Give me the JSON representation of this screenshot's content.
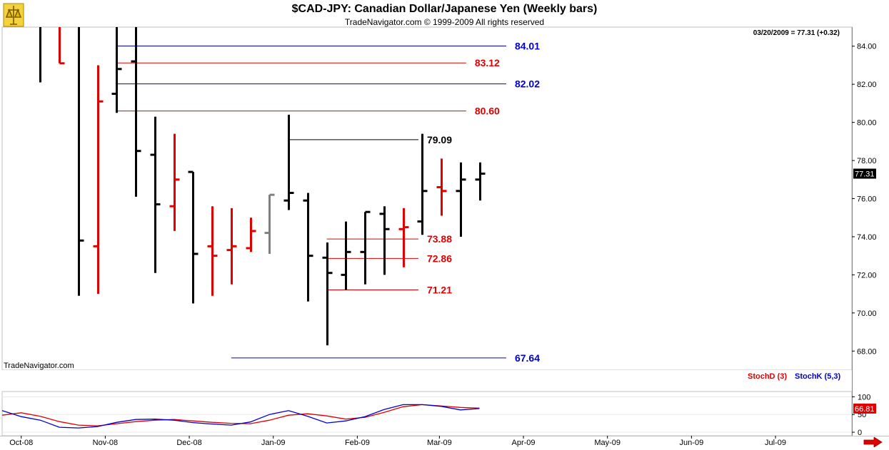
{
  "header": {
    "title": "$CAD-JPY:  Canadian Dollar/Japanese Yen  (Weekly bars)",
    "copyright": "TradeNavigator.com © 1999-2009 All rights reserved"
  },
  "price_panel": {
    "quote": "03/20/2009 = 77.31 (+0.32)",
    "last_price_tag": "77.31",
    "watermark": "TradeNavigator.com"
  },
  "stoch_panel": {
    "legend_d": "StochD (3)",
    "legend_k": "StochK (5,3)",
    "last_value_tag": "66.81"
  },
  "colors": {
    "up_bar": "#000000",
    "down_bar": "#e00000",
    "neutral_bar": "#808080",
    "blue_level": "#0000cc",
    "red_level": "#e00000",
    "black_level": "#000000",
    "stoch_d": "#e00000",
    "stoch_k": "#0000cc",
    "grid": "#e8e8e8"
  },
  "icons": [
    "logo-icon",
    "scroll-right-arrow-icon"
  ],
  "chart_data": [
    {
      "type": "ohlc",
      "title": "$CAD-JPY:  Canadian Dollar/Japanese Yen  (Weekly bars)",
      "ylim": [
        67,
        85
      ],
      "y_ticks": [
        68,
        70,
        72,
        74,
        76,
        78,
        80,
        82,
        84
      ],
      "y_tick_labels": [
        "68.00",
        "70.00",
        "72.00",
        "74.00",
        "76.00",
        "78.00",
        "80.00",
        "82.00",
        "84.00"
      ],
      "x_tick_labels": [
        "Oct-08",
        "Nov-08",
        "Dec-08",
        "Jan-09",
        "Feb-09",
        "Mar-09",
        "Apr-09",
        "May-09",
        "Jun-09",
        "Jul-09"
      ],
      "x_tick_weeks": [
        1,
        5.4,
        9.8,
        14.2,
        18.6,
        22.9,
        27.3,
        31.7,
        36.1,
        40.5
      ],
      "x_range_weeks": [
        0,
        44.5
      ],
      "grid": false,
      "bars": [
        {
          "week": 2,
          "open": 85,
          "high": 85,
          "low": 82.1,
          "close": 85,
          "color": "up"
        },
        {
          "week": 3,
          "open": 85,
          "high": 85,
          "low": 83.1,
          "close": 83.1,
          "color": "down"
        },
        {
          "week": 4,
          "open": 85,
          "high": 85,
          "low": 70.9,
          "close": 73.8,
          "color": "up"
        },
        {
          "week": 5,
          "open": 73.5,
          "high": 83.0,
          "low": 71.0,
          "close": 81.1,
          "color": "down"
        },
        {
          "week": 6,
          "open": 81.5,
          "high": 85,
          "low": 80.5,
          "close": 82.8,
          "color": "up"
        },
        {
          "week": 7,
          "open": 83.2,
          "high": 85,
          "low": 76.1,
          "close": 78.5,
          "color": "up"
        },
        {
          "week": 8,
          "open": 78.3,
          "high": 80.3,
          "low": 72.1,
          "close": 75.7,
          "color": "up"
        },
        {
          "week": 9,
          "open": 75.6,
          "high": 79.4,
          "low": 74.3,
          "close": 77.0,
          "color": "down"
        },
        {
          "week": 10,
          "open": 77.4,
          "high": 77.4,
          "low": 70.5,
          "close": 73.1,
          "color": "up"
        },
        {
          "week": 11,
          "open": 73.5,
          "high": 75.6,
          "low": 70.9,
          "close": 73.0,
          "color": "down"
        },
        {
          "week": 12,
          "open": 73.3,
          "high": 75.5,
          "low": 71.5,
          "close": 73.5,
          "color": "down"
        },
        {
          "week": 13,
          "open": 73.4,
          "high": 75.0,
          "low": 73.2,
          "close": 74.3,
          "color": "down"
        },
        {
          "week": 14,
          "open": 74.2,
          "high": 76.2,
          "low": 73.1,
          "close": 76.2,
          "color": "neutral"
        },
        {
          "week": 15,
          "open": 75.9,
          "high": 80.4,
          "low": 75.4,
          "close": 76.3,
          "color": "up"
        },
        {
          "week": 16,
          "open": 75.9,
          "high": 76.3,
          "low": 70.6,
          "close": 73.0,
          "color": "up"
        },
        {
          "week": 17,
          "open": 72.9,
          "high": 73.7,
          "low": 68.3,
          "close": 72.1,
          "color": "up"
        },
        {
          "week": 18,
          "open": 72.0,
          "high": 74.8,
          "low": 71.2,
          "close": 73.2,
          "color": "up"
        },
        {
          "week": 19,
          "open": 73.2,
          "high": 75.3,
          "low": 71.5,
          "close": 75.3,
          "color": "up"
        },
        {
          "week": 20,
          "open": 75.2,
          "high": 75.6,
          "low": 72.0,
          "close": 74.4,
          "color": "up"
        },
        {
          "week": 21,
          "open": 74.4,
          "high": 75.5,
          "low": 72.4,
          "close": 74.5,
          "color": "down"
        },
        {
          "week": 22,
          "open": 74.8,
          "high": 79.4,
          "low": 74.1,
          "close": 76.4,
          "color": "up"
        },
        {
          "week": 23,
          "open": 76.6,
          "high": 78.1,
          "low": 75.1,
          "close": 76.4,
          "color": "down"
        },
        {
          "week": 24,
          "open": 76.4,
          "high": 77.9,
          "low": 74.0,
          "close": 77.0,
          "color": "up"
        },
        {
          "week": 25,
          "open": 77.0,
          "high": 77.9,
          "low": 75.9,
          "close": 77.31,
          "color": "up"
        }
      ],
      "levels": [
        {
          "value": 84.01,
          "label": "84.01",
          "color": "blue",
          "from_week": 6,
          "to_week": 26.4
        },
        {
          "value": 83.12,
          "label": "83.12",
          "color": "red",
          "from_week": 6,
          "to_week": 24.3
        },
        {
          "value": 82.02,
          "label": "82.02",
          "color": "blue",
          "from_week": 6,
          "to_week": 26.4
        },
        {
          "value": 80.6,
          "label": "80.60",
          "color": "red",
          "from_week": 6,
          "to_week": 24.3
        },
        {
          "value": 79.09,
          "label": "79.09",
          "color": "black",
          "from_week": 15,
          "to_week": 21.8
        },
        {
          "value": 73.88,
          "label": "73.88",
          "color": "red",
          "from_week": 17,
          "to_week": 21.8
        },
        {
          "value": 72.86,
          "label": "72.86",
          "color": "red",
          "from_week": 17,
          "to_week": 21.8
        },
        {
          "value": 71.21,
          "label": "71.21",
          "color": "red",
          "from_week": 17,
          "to_week": 21.8
        },
        {
          "value": 67.64,
          "label": "67.64",
          "color": "blue",
          "from_week": 12,
          "to_week": 26.4
        }
      ]
    },
    {
      "type": "line",
      "title": "",
      "ylim": [
        -10,
        115
      ],
      "y_ticks": [
        0,
        50,
        100
      ],
      "y_tick_labels": [
        "0",
        "50",
        "100"
      ],
      "series": [
        {
          "name": "StochD (3)",
          "color": "red",
          "x": [
            0,
            1,
            2,
            3,
            4,
            5,
            6,
            7,
            8,
            9,
            10,
            11,
            12,
            13,
            14,
            15,
            16,
            17,
            18,
            19,
            20,
            21,
            22,
            23,
            24,
            25
          ],
          "values": [
            48,
            55,
            45,
            30,
            20,
            18,
            24,
            30,
            34,
            36,
            32,
            28,
            25,
            24,
            34,
            48,
            52,
            46,
            37,
            42,
            56,
            72,
            78,
            74,
            70,
            68
          ]
        },
        {
          "name": "StochK (5,3)",
          "color": "blue",
          "x": [
            0,
            1,
            2,
            3,
            4,
            5,
            6,
            7,
            8,
            9,
            10,
            11,
            12,
            13,
            14,
            15,
            16,
            17,
            18,
            19,
            20,
            21,
            22,
            23,
            24,
            25
          ],
          "values": [
            61,
            44,
            34,
            14,
            12,
            16,
            28,
            36,
            37,
            34,
            27,
            23,
            20,
            29,
            50,
            61,
            45,
            26,
            32,
            44,
            64,
            78,
            78,
            73,
            63,
            66.81
          ]
        }
      ]
    }
  ]
}
